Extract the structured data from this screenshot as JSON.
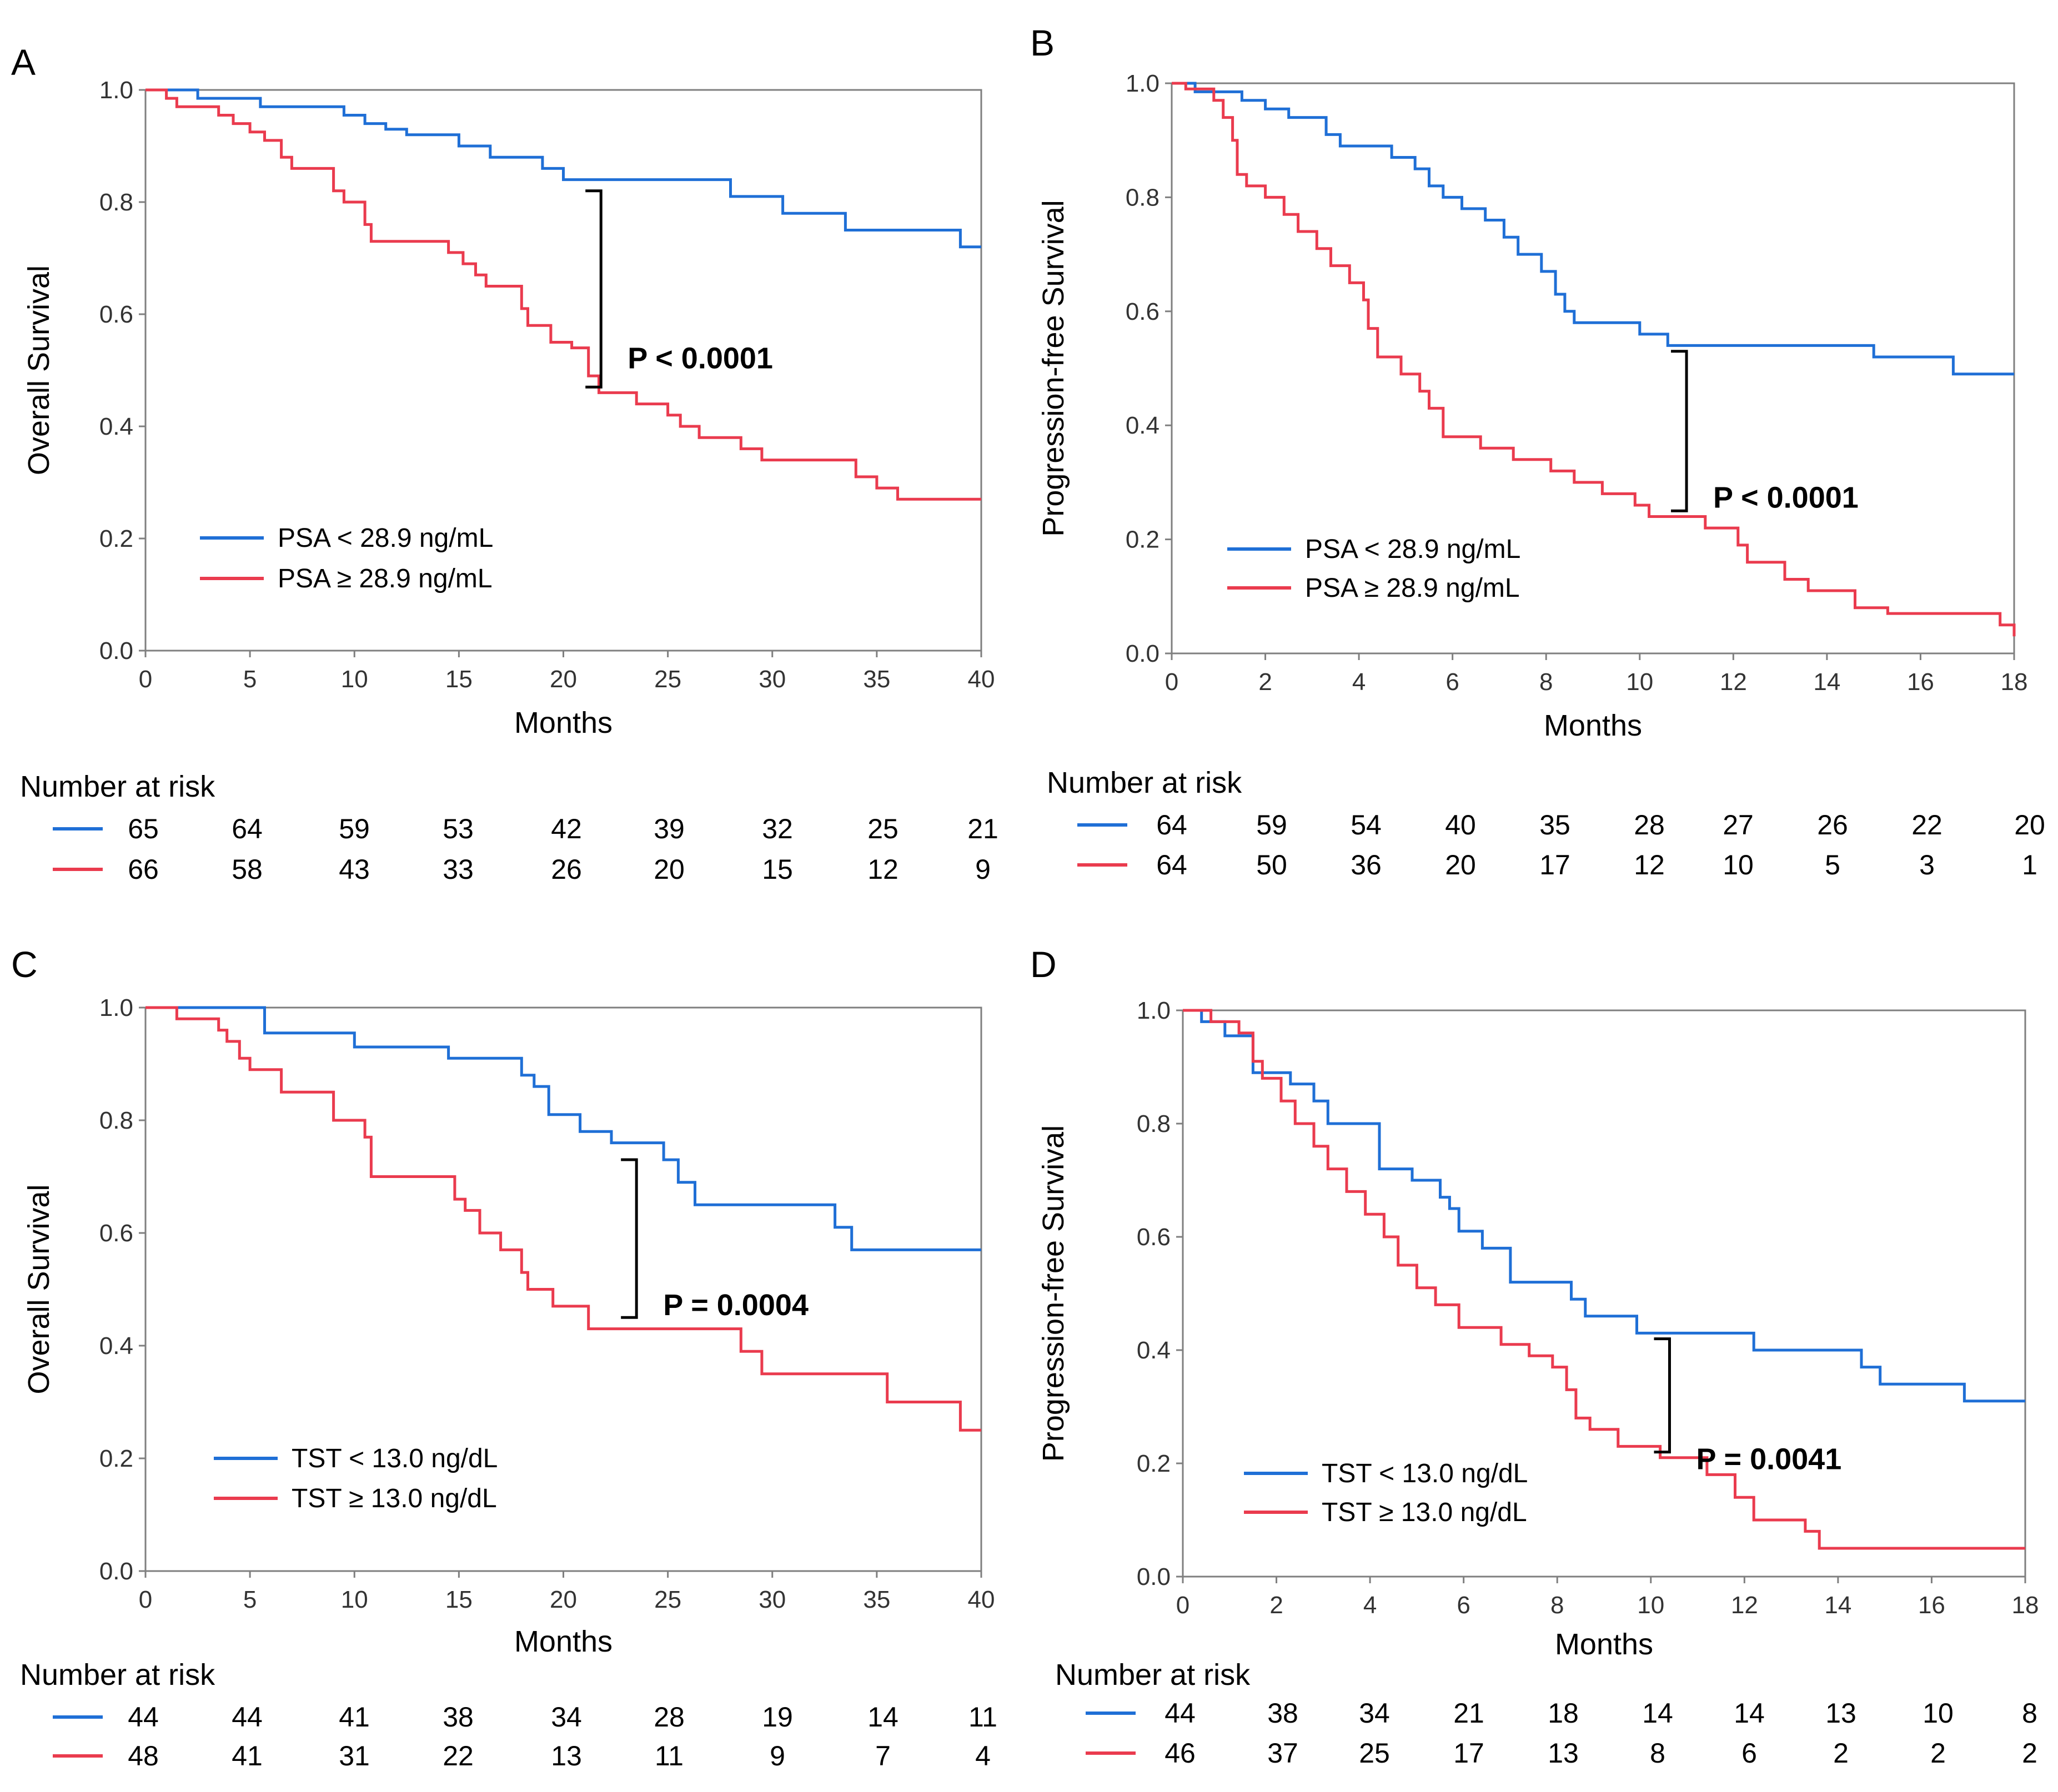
{
  "colors": {
    "blue": "#1f6fd6",
    "red": "#ea3b4e",
    "axis": "#7f7f7f",
    "pbracket": "#000000"
  },
  "chart_data": [
    {
      "panel": "A",
      "type": "line",
      "xlabel": "Months",
      "ylabel": "Overall Survival",
      "xlim": [
        0,
        40
      ],
      "ylim": [
        0,
        1
      ],
      "xticks": [
        "0",
        "5",
        "10",
        "15",
        "20",
        "25",
        "30",
        "35",
        "40"
      ],
      "yticks": [
        "0.0",
        "0.2",
        "0.4",
        "0.6",
        "0.8",
        "1.0"
      ],
      "pvalue": "P < 0.0001",
      "bracket": {
        "x": 21.8,
        "y_top": 0.82,
        "y_bot": 0.47
      },
      "risk_title": "Number at risk",
      "series": [
        {
          "name": "PSA < 28.9 ng/mL",
          "color": "blue",
          "steps": [
            [
              0,
              1
            ],
            [
              2.5,
              0.985
            ],
            [
              5.5,
              0.97
            ],
            [
              9.5,
              0.955
            ],
            [
              10.5,
              0.94
            ],
            [
              11.5,
              0.93
            ],
            [
              12.5,
              0.92
            ],
            [
              15,
              0.9
            ],
            [
              16.5,
              0.88
            ],
            [
              19,
              0.86
            ],
            [
              20,
              0.84
            ],
            [
              28,
              0.81
            ],
            [
              30.5,
              0.78
            ],
            [
              33.5,
              0.75
            ],
            [
              39,
              0.72
            ],
            [
              40,
              0.72
            ]
          ],
          "risk": [
            "65",
            "64",
            "59",
            "53",
            "42",
            "39",
            "32",
            "25",
            "21"
          ]
        },
        {
          "name": "PSA ≥ 28.9 ng/mL",
          "color": "red",
          "steps": [
            [
              0,
              1
            ],
            [
              1,
              0.985
            ],
            [
              1.5,
              0.97
            ],
            [
              3.5,
              0.955
            ],
            [
              4.2,
              0.94
            ],
            [
              5,
              0.925
            ],
            [
              5.7,
              0.91
            ],
            [
              6.5,
              0.88
            ],
            [
              7,
              0.86
            ],
            [
              9,
              0.82
            ],
            [
              9.5,
              0.8
            ],
            [
              10.5,
              0.76
            ],
            [
              10.8,
              0.73
            ],
            [
              14.5,
              0.71
            ],
            [
              15.2,
              0.69
            ],
            [
              15.8,
              0.67
            ],
            [
              16.3,
              0.65
            ],
            [
              18,
              0.61
            ],
            [
              18.3,
              0.58
            ],
            [
              19.4,
              0.55
            ],
            [
              20.4,
              0.54
            ],
            [
              21.2,
              0.49
            ],
            [
              21.7,
              0.46
            ],
            [
              23.5,
              0.44
            ],
            [
              25,
              0.42
            ],
            [
              25.6,
              0.4
            ],
            [
              26.5,
              0.38
            ],
            [
              28.5,
              0.36
            ],
            [
              29.5,
              0.34
            ],
            [
              34,
              0.31
            ],
            [
              35,
              0.29
            ],
            [
              36,
              0.27
            ],
            [
              40,
              0.27
            ]
          ],
          "risk": [
            "66",
            "58",
            "43",
            "33",
            "26",
            "20",
            "15",
            "12",
            "9"
          ]
        }
      ]
    },
    {
      "panel": "B",
      "type": "line",
      "xlabel": "Months",
      "ylabel": "Progression-free Survival",
      "xlim": [
        0,
        18
      ],
      "ylim": [
        0,
        1
      ],
      "xticks": [
        "0",
        "2",
        "4",
        "6",
        "8",
        "10",
        "12",
        "14",
        "16",
        "18"
      ],
      "yticks": [
        "0.0",
        "0.2",
        "0.4",
        "0.6",
        "0.8",
        "1.0"
      ],
      "pvalue": "P < 0.0001",
      "bracket": {
        "x": 11.0,
        "y_top": 0.53,
        "y_bot": 0.25
      },
      "risk_title": "Number at risk",
      "series": [
        {
          "name": "PSA < 28.9 ng/mL",
          "color": "blue",
          "steps": [
            [
              0,
              1
            ],
            [
              0.5,
              0.985
            ],
            [
              1.5,
              0.97
            ],
            [
              2,
              0.955
            ],
            [
              2.5,
              0.94
            ],
            [
              3.3,
              0.91
            ],
            [
              3.6,
              0.89
            ],
            [
              4.7,
              0.87
            ],
            [
              5.2,
              0.85
            ],
            [
              5.5,
              0.82
            ],
            [
              5.8,
              0.8
            ],
            [
              6.2,
              0.78
            ],
            [
              6.7,
              0.76
            ],
            [
              7.1,
              0.73
            ],
            [
              7.4,
              0.7
            ],
            [
              7.9,
              0.67
            ],
            [
              8.2,
              0.63
            ],
            [
              8.4,
              0.6
            ],
            [
              8.6,
              0.58
            ],
            [
              10,
              0.56
            ],
            [
              10.6,
              0.54
            ],
            [
              15,
              0.52
            ],
            [
              16.7,
              0.49
            ],
            [
              18,
              0.49
            ]
          ],
          "risk": [
            "64",
            "59",
            "54",
            "40",
            "35",
            "28",
            "27",
            "26",
            "22",
            "20"
          ]
        },
        {
          "name": "PSA ≥ 28.9 ng/mL",
          "color": "red",
          "steps": [
            [
              0,
              1
            ],
            [
              0.3,
              0.99
            ],
            [
              0.9,
              0.97
            ],
            [
              1.1,
              0.94
            ],
            [
              1.3,
              0.9
            ],
            [
              1.4,
              0.84
            ],
            [
              1.6,
              0.82
            ],
            [
              2,
              0.8
            ],
            [
              2.4,
              0.77
            ],
            [
              2.7,
              0.74
            ],
            [
              3.1,
              0.71
            ],
            [
              3.4,
              0.68
            ],
            [
              3.8,
              0.65
            ],
            [
              4.1,
              0.62
            ],
            [
              4.2,
              0.57
            ],
            [
              4.4,
              0.52
            ],
            [
              4.9,
              0.49
            ],
            [
              5.3,
              0.46
            ],
            [
              5.5,
              0.43
            ],
            [
              5.8,
              0.38
            ],
            [
              6.6,
              0.36
            ],
            [
              7.3,
              0.34
            ],
            [
              8.1,
              0.32
            ],
            [
              8.6,
              0.3
            ],
            [
              9.2,
              0.28
            ],
            [
              9.9,
              0.26
            ],
            [
              10.2,
              0.24
            ],
            [
              11.4,
              0.22
            ],
            [
              12.1,
              0.19
            ],
            [
              12.3,
              0.16
            ],
            [
              13.1,
              0.13
            ],
            [
              13.6,
              0.11
            ],
            [
              14.6,
              0.08
            ],
            [
              15.3,
              0.07
            ],
            [
              17.7,
              0.05
            ],
            [
              18,
              0.03
            ]
          ],
          "risk": [
            "64",
            "50",
            "36",
            "20",
            "17",
            "12",
            "10",
            "5",
            "3",
            "1"
          ]
        }
      ]
    },
    {
      "panel": "C",
      "type": "line",
      "xlabel": "Months",
      "ylabel": "Overall Survival",
      "xlim": [
        0,
        40
      ],
      "ylim": [
        0,
        1
      ],
      "xticks": [
        "0",
        "5",
        "10",
        "15",
        "20",
        "25",
        "30",
        "35",
        "40"
      ],
      "yticks": [
        "0.0",
        "0.2",
        "0.4",
        "0.6",
        "0.8",
        "1.0"
      ],
      "pvalue": "P = 0.0004",
      "bracket": {
        "x": 23.5,
        "y_top": 0.73,
        "y_bot": 0.45
      },
      "risk_title": "Number at risk",
      "series": [
        {
          "name": "TST < 13.0 ng/dL",
          "color": "blue",
          "steps": [
            [
              0,
              1
            ],
            [
              5.7,
              0.955
            ],
            [
              10,
              0.93
            ],
            [
              14.5,
              0.91
            ],
            [
              18,
              0.88
            ],
            [
              18.6,
              0.86
            ],
            [
              19.3,
              0.81
            ],
            [
              20.8,
              0.78
            ],
            [
              22.3,
              0.76
            ],
            [
              24.8,
              0.73
            ],
            [
              25.5,
              0.69
            ],
            [
              26.3,
              0.65
            ],
            [
              33,
              0.61
            ],
            [
              33.8,
              0.57
            ],
            [
              40,
              0.57
            ]
          ],
          "risk": [
            "44",
            "44",
            "41",
            "38",
            "34",
            "28",
            "19",
            "14",
            "11"
          ]
        },
        {
          "name": "TST ≥ 13.0 ng/dL",
          "color": "red",
          "steps": [
            [
              0,
              1
            ],
            [
              1.5,
              0.98
            ],
            [
              3.5,
              0.96
            ],
            [
              3.9,
              0.94
            ],
            [
              4.5,
              0.91
            ],
            [
              5,
              0.89
            ],
            [
              6.5,
              0.85
            ],
            [
              9,
              0.8
            ],
            [
              10.5,
              0.77
            ],
            [
              10.8,
              0.7
            ],
            [
              14.8,
              0.66
            ],
            [
              15.3,
              0.64
            ],
            [
              16,
              0.6
            ],
            [
              17,
              0.57
            ],
            [
              18,
              0.53
            ],
            [
              18.3,
              0.5
            ],
            [
              19.5,
              0.47
            ],
            [
              21.2,
              0.43
            ],
            [
              28.5,
              0.39
            ],
            [
              29.5,
              0.35
            ],
            [
              35.5,
              0.3
            ],
            [
              39,
              0.25
            ],
            [
              40,
              0.25
            ]
          ],
          "risk": [
            "48",
            "41",
            "31",
            "22",
            "13",
            "11",
            "9",
            "7",
            "4"
          ]
        }
      ]
    },
    {
      "panel": "D",
      "type": "line",
      "xlabel": "Months",
      "ylabel": "Progression-free Survival",
      "xlim": [
        0,
        18
      ],
      "ylim": [
        0,
        1
      ],
      "xticks": [
        "0",
        "2",
        "4",
        "6",
        "8",
        "10",
        "12",
        "14",
        "16",
        "18"
      ],
      "yticks": [
        "0.0",
        "0.2",
        "0.4",
        "0.6",
        "0.8",
        "1.0"
      ],
      "pvalue": "P = 0.0041",
      "bracket": {
        "x": 10.4,
        "y_top": 0.42,
        "y_bot": 0.22
      },
      "risk_title": "Number at risk",
      "series": [
        {
          "name": "TST < 13.0 ng/dL",
          "color": "blue",
          "steps": [
            [
              0,
              1
            ],
            [
              0.4,
              0.98
            ],
            [
              0.9,
              0.955
            ],
            [
              1.5,
              0.89
            ],
            [
              2.3,
              0.87
            ],
            [
              2.8,
              0.84
            ],
            [
              3.1,
              0.8
            ],
            [
              4.2,
              0.72
            ],
            [
              4.9,
              0.7
            ],
            [
              5.5,
              0.67
            ],
            [
              5.7,
              0.65
            ],
            [
              5.9,
              0.61
            ],
            [
              6.4,
              0.58
            ],
            [
              7,
              0.52
            ],
            [
              8.3,
              0.49
            ],
            [
              8.6,
              0.46
            ],
            [
              9.7,
              0.43
            ],
            [
              12.2,
              0.4
            ],
            [
              14.5,
              0.37
            ],
            [
              14.9,
              0.34
            ],
            [
              16.7,
              0.31
            ],
            [
              18,
              0.31
            ]
          ],
          "risk": [
            "44",
            "38",
            "34",
            "21",
            "18",
            "14",
            "14",
            "13",
            "10",
            "8"
          ]
        },
        {
          "name": "TST ≥ 13.0 ng/dL",
          "color": "red",
          "steps": [
            [
              0,
              1
            ],
            [
              0.6,
              0.98
            ],
            [
              1.2,
              0.96
            ],
            [
              1.5,
              0.91
            ],
            [
              1.7,
              0.88
            ],
            [
              2.1,
              0.84
            ],
            [
              2.4,
              0.8
            ],
            [
              2.8,
              0.76
            ],
            [
              3.1,
              0.72
            ],
            [
              3.5,
              0.68
            ],
            [
              3.9,
              0.64
            ],
            [
              4.3,
              0.6
            ],
            [
              4.6,
              0.55
            ],
            [
              5,
              0.51
            ],
            [
              5.4,
              0.48
            ],
            [
              5.9,
              0.44
            ],
            [
              6.8,
              0.41
            ],
            [
              7.4,
              0.39
            ],
            [
              7.9,
              0.37
            ],
            [
              8.2,
              0.33
            ],
            [
              8.4,
              0.28
            ],
            [
              8.7,
              0.26
            ],
            [
              9.3,
              0.23
            ],
            [
              10.2,
              0.21
            ],
            [
              11.2,
              0.18
            ],
            [
              11.8,
              0.14
            ],
            [
              12.2,
              0.1
            ],
            [
              13.3,
              0.08
            ],
            [
              13.6,
              0.05
            ],
            [
              18,
              0.05
            ]
          ],
          "risk": [
            "46",
            "37",
            "25",
            "17",
            "13",
            "8",
            "6",
            "2",
            "2",
            "2"
          ]
        }
      ]
    }
  ]
}
